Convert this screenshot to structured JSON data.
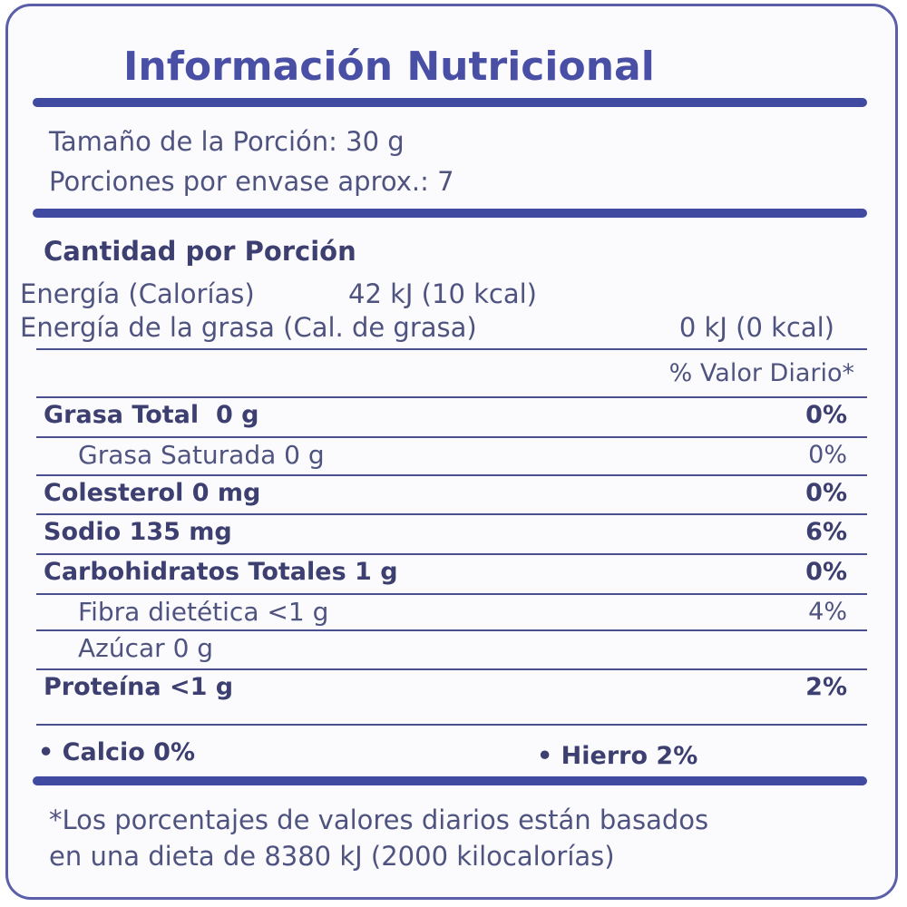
{
  "title": "Información Nutricional",
  "serving": [
    "Tamaño de la Porción: 30 g",
    "Porciones por envase aprox.: 7"
  ],
  "amount_header": "Cantidad por Porción",
  "energy": [
    {
      "label": "Energía (Calorías)",
      "value": "42 kJ (10 kcal)"
    },
    {
      "label": "Energía de la grasa (Cal. de grasa)",
      "value": "0 kJ (0 kcal)"
    }
  ],
  "dv_header": "% Valor Diario*",
  "nutrients": [
    {
      "name": "Grasa Total  0 g",
      "dv": "0%"
    },
    {
      "name": "Grasa Saturada 0 g",
      "dv": "0%"
    },
    {
      "name": "Colesterol 0 mg",
      "dv": "0%"
    },
    {
      "name": "Sodio 135 mg",
      "dv": "6%"
    },
    {
      "name": "Carbohidratos Totales 1 g",
      "dv": "0%"
    },
    {
      "name": "Fibra dietética <1 g",
      "dv": "4%"
    },
    {
      "name": "Azúcar 0 g"
    },
    {
      "name": "Proteína <1 g",
      "dv": "2%"
    }
  ],
  "minerals": [
    "Calcio 0%",
    "Hierro 2%"
  ],
  "footnote": [
    "*Los porcentajes de valores diarios están basados",
    "en una dieta de 8380 kJ (2000 kilocalorías)"
  ]
}
